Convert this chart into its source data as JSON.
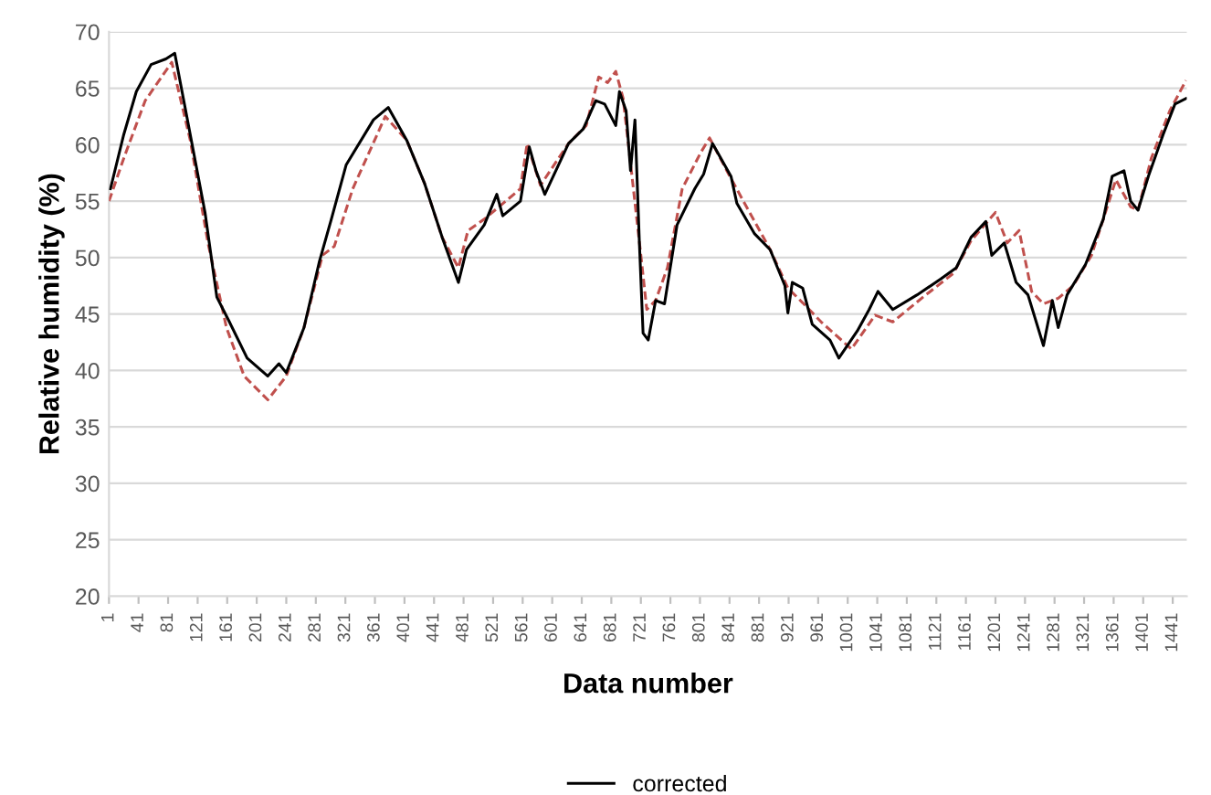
{
  "chart_data": {
    "type": "line",
    "xlabel": "Data number",
    "ylabel": "Relative humidity (%)",
    "xlim": [
      1,
      1460
    ],
    "ylim": [
      20,
      70
    ],
    "xticks": [
      1,
      41,
      81,
      121,
      161,
      201,
      241,
      281,
      321,
      361,
      401,
      441,
      481,
      521,
      561,
      601,
      641,
      681,
      721,
      761,
      801,
      841,
      881,
      921,
      961,
      1001,
      1041,
      1081,
      1121,
      1161,
      1201,
      1241,
      1281,
      1321,
      1361,
      1401,
      1441
    ],
    "yticks": [
      20,
      25,
      30,
      35,
      40,
      45,
      50,
      55,
      60,
      65,
      70
    ],
    "grid": "y",
    "legend": "bottom",
    "marker": "none",
    "series": [
      {
        "color": "#c0504d",
        "line_style": "dashed",
        "x": [
          1,
          21,
          50,
          86,
          111,
          135,
          160,
          184,
          216,
          241,
          265,
          290,
          306,
          331,
          375,
          404,
          428,
          452,
          474,
          487,
          509,
          558,
          567,
          585,
          623,
          647,
          664,
          676,
          687,
          697,
          709,
          721,
          729,
          741,
          757,
          777,
          802,
          814,
          843,
          896,
          920,
          940,
          965,
          1006,
          1038,
          1062,
          1103,
          1144,
          1168,
          1201,
          1217,
          1233,
          1250,
          1266,
          1286,
          1306,
          1331,
          1347,
          1364,
          1384,
          1394,
          1412,
          1437,
          1459
        ],
        "values": [
          55.0,
          58.8,
          63.9,
          67.3,
          60.4,
          51.3,
          43.8,
          39.5,
          37.4,
          39.5,
          43.8,
          50.2,
          51.0,
          56.1,
          62.5,
          60.4,
          56.6,
          51.8,
          49.1,
          52.4,
          53.4,
          56.1,
          60.1,
          56.4,
          60.1,
          61.7,
          66.0,
          65.5,
          66.5,
          64.1,
          57.2,
          50.2,
          45.4,
          46.2,
          49.1,
          56.1,
          59.3,
          60.6,
          57.0,
          50.7,
          47.3,
          46.0,
          44.3,
          41.9,
          44.9,
          44.3,
          46.5,
          48.6,
          51.5,
          54.0,
          51.3,
          52.4,
          47.0,
          45.9,
          46.4,
          47.5,
          50.2,
          53.4,
          56.9,
          54.5,
          54.2,
          58.8,
          63.0,
          65.7
        ]
      },
      {
        "name": "corrected",
        "color": "#000000",
        "line_style": "solid",
        "x": [
          3,
          21,
          38,
          58,
          78,
          90,
          111,
          131,
          147,
          164,
          188,
          216,
          231,
          241,
          265,
          286,
          302,
          322,
          359,
          379,
          404,
          428,
          452,
          474,
          485,
          509,
          526,
          534,
          558,
          570,
          579,
          591,
          623,
          643,
          660,
          672,
          687,
          692,
          701,
          707,
          713,
          719,
          724,
          731,
          741,
          753,
          770,
          794,
          806,
          818,
          843,
          851,
          875,
          896,
          916,
          920,
          926,
          940,
          953,
          977,
          989,
          1014,
          1030,
          1042,
          1062,
          1095,
          1127,
          1148,
          1168,
          1188,
          1196,
          1213,
          1229,
          1245,
          1266,
          1278,
          1286,
          1298,
          1323,
          1347,
          1359,
          1375,
          1384,
          1394,
          1408,
          1428,
          1444,
          1459
        ],
        "values": [
          56.1,
          60.9,
          64.7,
          67.1,
          67.6,
          68.1,
          60.9,
          54.0,
          46.5,
          44.3,
          41.1,
          39.5,
          40.6,
          39.8,
          43.8,
          49.7,
          53.4,
          58.2,
          62.2,
          63.3,
          60.4,
          56.6,
          51.8,
          47.8,
          50.7,
          52.9,
          55.6,
          53.7,
          55.0,
          59.8,
          57.7,
          55.6,
          60.1,
          61.4,
          63.9,
          63.6,
          61.7,
          64.7,
          63.0,
          57.7,
          62.2,
          51.3,
          43.3,
          42.7,
          46.2,
          45.9,
          52.9,
          56.1,
          57.4,
          60.1,
          57.2,
          54.8,
          52.1,
          50.7,
          47.5,
          45.1,
          47.8,
          47.3,
          44.1,
          42.7,
          41.1,
          43.5,
          45.4,
          47.0,
          45.4,
          46.7,
          48.1,
          49.1,
          51.8,
          53.2,
          50.2,
          51.3,
          47.8,
          46.7,
          42.2,
          46.2,
          43.8,
          46.7,
          49.4,
          53.4,
          57.2,
          57.7,
          55.0,
          54.2,
          57.2,
          60.9,
          63.6,
          64.1
        ]
      }
    ]
  }
}
